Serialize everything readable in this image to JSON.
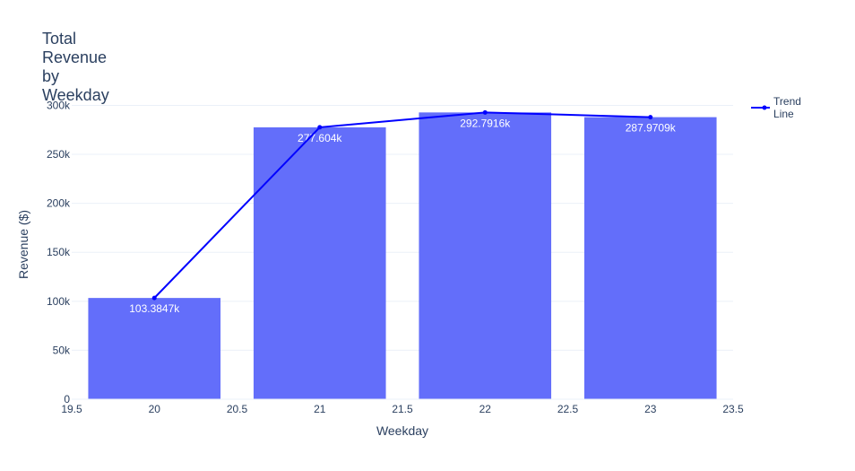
{
  "chart_data": {
    "type": "bar",
    "title": "Total Revenue by Weekday",
    "xlabel": "Weekday",
    "ylabel": "Revenue ($)",
    "x": [
      20,
      21,
      22,
      23
    ],
    "values": [
      103384.7,
      277604,
      292791.6,
      287970.9
    ],
    "data_labels": [
      "103.3847k",
      "277.604k",
      "292.7916k",
      "287.9709k"
    ],
    "series": [
      {
        "name": "",
        "type": "bar",
        "values": [
          103384.7,
          277604,
          292791.6,
          287970.9
        ],
        "color": "#636efa"
      },
      {
        "name": "Trend Line",
        "type": "line",
        "values": [
          103384.7,
          277604,
          292791.6,
          287970.9
        ],
        "color": "#0000ff"
      }
    ],
    "xlim": [
      19.5,
      23.5
    ],
    "ylim": [
      0,
      316000
    ],
    "x_ticks": [
      19.5,
      20,
      20.5,
      21,
      21.5,
      22,
      22.5,
      23,
      23.5
    ],
    "x_tick_labels": [
      "19.5",
      "20",
      "20.5",
      "21",
      "21.5",
      "22",
      "22.5",
      "23",
      "23.5"
    ],
    "y_ticks": [
      0,
      50000,
      100000,
      150000,
      200000,
      250000,
      300000
    ],
    "y_tick_labels": [
      "0",
      "50k",
      "100k",
      "150k",
      "200k",
      "250k",
      "300k"
    ],
    "grid": true,
    "legend_position": "top-right",
    "legend": [
      "Trend Line"
    ]
  }
}
